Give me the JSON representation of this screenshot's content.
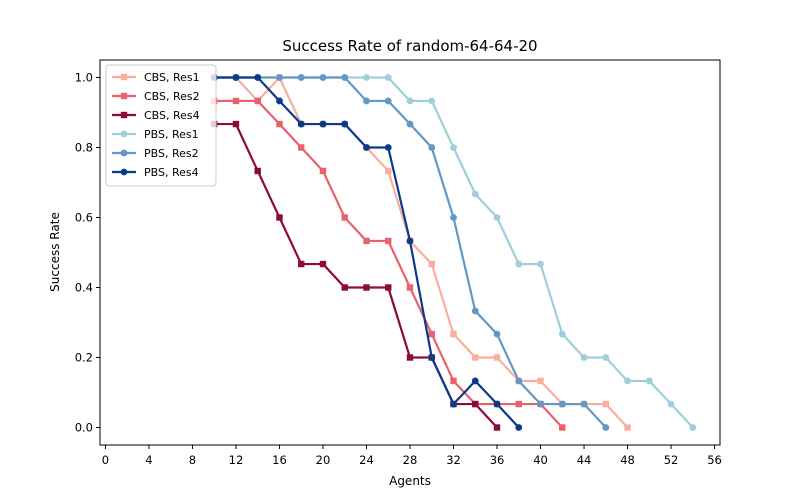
{
  "chart_data": {
    "type": "line",
    "title": "Success Rate of random-64-64-20",
    "xlabel": "Agents",
    "ylabel": "Success Rate",
    "xlim": [
      -0.5,
      56.5
    ],
    "ylim": [
      -0.05,
      1.05
    ],
    "xticks": [
      0,
      4,
      8,
      12,
      16,
      20,
      24,
      28,
      32,
      36,
      40,
      44,
      48,
      52,
      56
    ],
    "yticks": [
      0.0,
      0.2,
      0.4,
      0.6,
      0.8,
      1.0
    ],
    "xtick_labels": [
      "0",
      "4",
      "8",
      "12",
      "16",
      "20",
      "24",
      "28",
      "32",
      "36",
      "40",
      "44",
      "48",
      "52",
      "56"
    ],
    "ytick_labels": [
      "0.0",
      "0.2",
      "0.4",
      "0.6",
      "0.8",
      "1.0"
    ],
    "grid": false,
    "legend_position": "upper-left",
    "series": [
      {
        "name": "CBS, Res1",
        "color": "#f9ae9e",
        "marker": "square",
        "x": [
          10,
          12,
          14,
          16,
          18,
          20,
          22,
          24,
          26,
          28,
          30,
          32,
          34,
          36,
          38,
          40,
          42,
          44,
          46,
          48
        ],
        "y": [
          1.0,
          1.0,
          0.933,
          1.0,
          0.867,
          0.867,
          0.867,
          0.8,
          0.733,
          0.533,
          0.467,
          0.267,
          0.2,
          0.2,
          0.133,
          0.133,
          0.067,
          0.067,
          0.067,
          0.0
        ]
      },
      {
        "name": "CBS, Res2",
        "color": "#e8616d",
        "marker": "square",
        "x": [
          10,
          12,
          14,
          16,
          18,
          20,
          22,
          24,
          26,
          28,
          30,
          32,
          34,
          36,
          38,
          40,
          42
        ],
        "y": [
          0.933,
          0.933,
          0.933,
          0.867,
          0.8,
          0.733,
          0.6,
          0.533,
          0.533,
          0.4,
          0.267,
          0.133,
          0.067,
          0.067,
          0.067,
          0.067,
          0.0
        ]
      },
      {
        "name": "CBS, Res4",
        "color": "#8c0a3c",
        "marker": "square",
        "x": [
          10,
          12,
          14,
          16,
          18,
          20,
          22,
          24,
          26,
          28,
          30,
          32,
          34,
          36
        ],
        "y": [
          0.867,
          0.867,
          0.733,
          0.6,
          0.467,
          0.467,
          0.4,
          0.4,
          0.4,
          0.2,
          0.2,
          0.067,
          0.067,
          0.0
        ]
      },
      {
        "name": "PBS, Res1",
        "color": "#9ecfdb",
        "marker": "circle",
        "x": [
          10,
          12,
          14,
          16,
          18,
          20,
          22,
          24,
          26,
          28,
          30,
          32,
          34,
          36,
          38,
          40,
          42,
          44,
          46,
          48,
          50,
          52,
          54
        ],
        "y": [
          1.0,
          1.0,
          1.0,
          1.0,
          1.0,
          1.0,
          1.0,
          1.0,
          1.0,
          0.933,
          0.933,
          0.8,
          0.667,
          0.6,
          0.467,
          0.467,
          0.267,
          0.2,
          0.2,
          0.133,
          0.133,
          0.067,
          0.0
        ]
      },
      {
        "name": "PBS, Res2",
        "color": "#6497c4",
        "marker": "circle",
        "x": [
          10,
          12,
          14,
          16,
          18,
          20,
          22,
          24,
          26,
          28,
          30,
          32,
          34,
          36,
          38,
          40,
          42,
          44,
          46
        ],
        "y": [
          1.0,
          1.0,
          1.0,
          1.0,
          1.0,
          1.0,
          1.0,
          0.933,
          0.933,
          0.867,
          0.8,
          0.6,
          0.333,
          0.267,
          0.133,
          0.067,
          0.067,
          0.067,
          0.0
        ]
      },
      {
        "name": "PBS, Res4",
        "color": "#0b3a8c",
        "marker": "circle",
        "x": [
          10,
          12,
          14,
          16,
          18,
          20,
          22,
          24,
          26,
          28,
          30,
          32,
          34,
          36,
          38
        ],
        "y": [
          1.0,
          1.0,
          1.0,
          0.933,
          0.867,
          0.867,
          0.867,
          0.8,
          0.8,
          0.533,
          0.2,
          0.067,
          0.133,
          0.067,
          0.0
        ]
      }
    ]
  }
}
